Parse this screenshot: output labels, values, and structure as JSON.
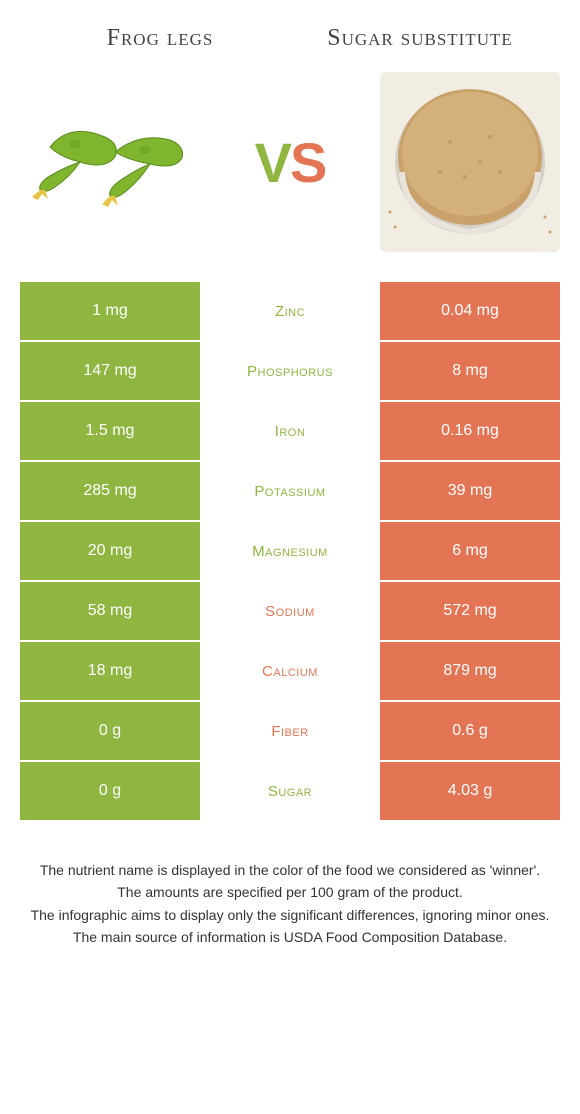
{
  "header": {
    "left_title": "Frog legs",
    "right_title": "Sugar substitute",
    "vs_v": "V",
    "vs_s": "S"
  },
  "colors": {
    "left_bg": "#8fb640",
    "right_bg": "#e37555",
    "left_text": "#ffffff",
    "right_text": "#ffffff",
    "winner_left": "#8fb640",
    "winner_right": "#e37555"
  },
  "rows": [
    {
      "left": "1 mg",
      "label": "Zinc",
      "right": "0.04 mg",
      "winner": "left"
    },
    {
      "left": "147 mg",
      "label": "Phosphorus",
      "right": "8 mg",
      "winner": "left"
    },
    {
      "left": "1.5 mg",
      "label": "Iron",
      "right": "0.16 mg",
      "winner": "left"
    },
    {
      "left": "285 mg",
      "label": "Potassium",
      "right": "39 mg",
      "winner": "left"
    },
    {
      "left": "20 mg",
      "label": "Magnesium",
      "right": "6 mg",
      "winner": "left"
    },
    {
      "left": "58 mg",
      "label": "Sodium",
      "right": "572 mg",
      "winner": "right"
    },
    {
      "left": "18 mg",
      "label": "Calcium",
      "right": "879 mg",
      "winner": "right"
    },
    {
      "left": "0 g",
      "label": "Fiber",
      "right": "0.6 g",
      "winner": "right"
    },
    {
      "left": "0 g",
      "label": "Sugar",
      "right": "4.03 g",
      "winner": "left"
    }
  ],
  "footer": {
    "line1": "The nutrient name is displayed in the color of the food we considered as 'winner'.",
    "line2": "The amounts are specified per 100 gram of the product.",
    "line3": "The infographic aims to display only the significant differences, ignoring minor ones.",
    "line4": "The main source of information is USDA Food Composition Database."
  }
}
